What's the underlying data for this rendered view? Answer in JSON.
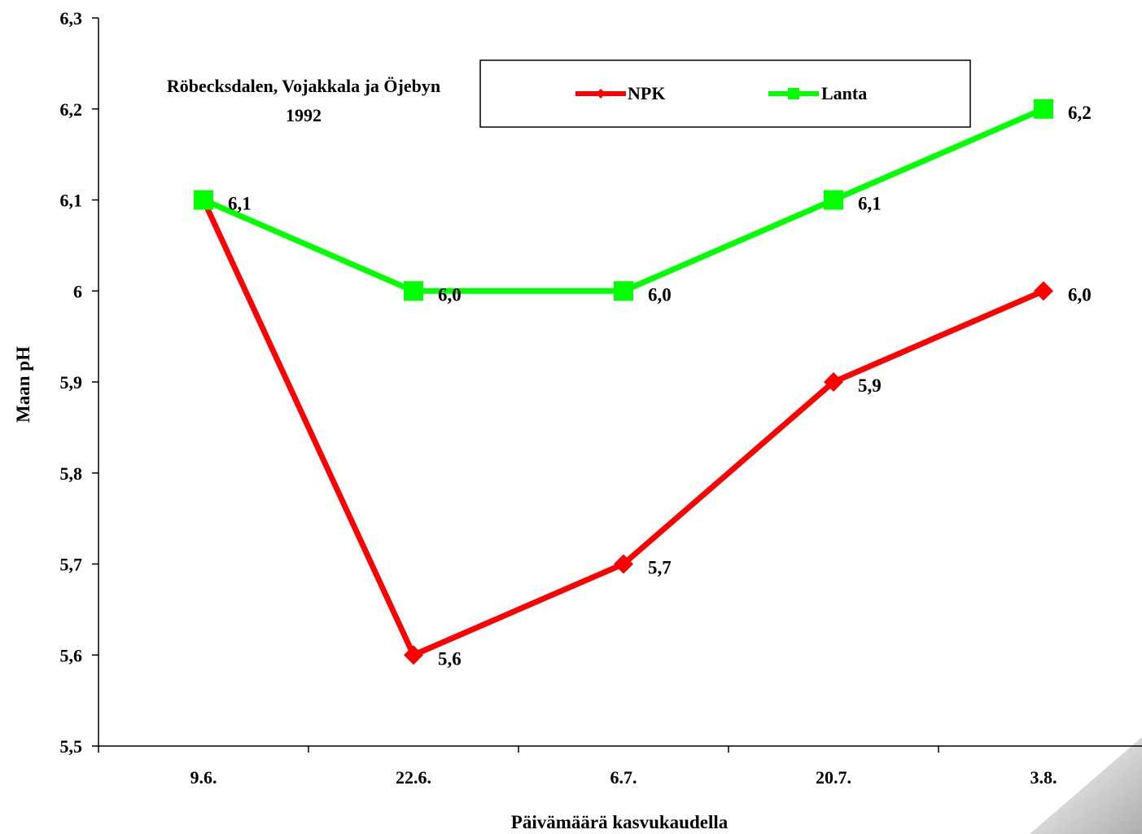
{
  "chart_data": {
    "type": "line",
    "categories": [
      "9.6.",
      "22.6.",
      "6.7.",
      "20.7.",
      "3.8."
    ],
    "series": [
      {
        "name": "NPK",
        "values": [
          6.1,
          5.6,
          5.7,
          5.9,
          6.0
        ],
        "labels": [
          "",
          "5,6",
          "5,7",
          "5,9",
          "6,0"
        ],
        "color": "#ff0000",
        "marker": "diamond"
      },
      {
        "name": "Lanta",
        "values": [
          6.1,
          6.0,
          6.0,
          6.1,
          6.2
        ],
        "labels": [
          "6,1",
          "6,0",
          "6,0",
          "6,1",
          "6,2"
        ],
        "color": "#00ff00",
        "marker": "square"
      }
    ],
    "title": "",
    "annotation": [
      "Röbecksdalen, Vojakkala ja Öjebyn",
      "1992"
    ],
    "xlabel": "Päivämäärä kasvukaudella",
    "ylabel": "Maan pH",
    "ylim": [
      5.5,
      6.3
    ],
    "yticks": [
      5.5,
      5.6,
      5.7,
      5.8,
      5.9,
      6.0,
      6.1,
      6.2,
      6.3
    ],
    "ytick_labels": [
      "5,5",
      "5,6",
      "5,7",
      "5,8",
      "5,9",
      "6",
      "6,1",
      "6,2",
      "6,3"
    ],
    "grid": false,
    "legend_position": "top-center"
  }
}
